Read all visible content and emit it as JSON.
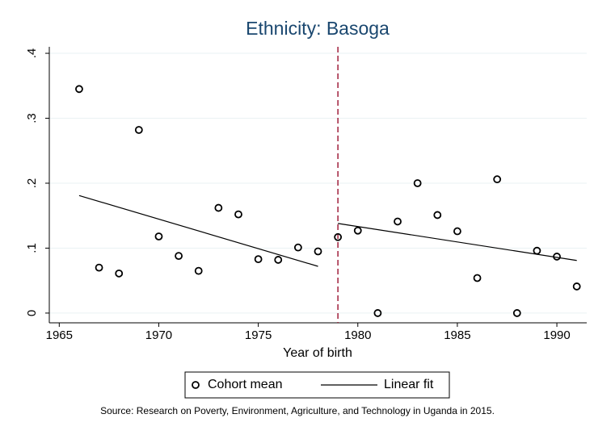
{
  "chart_data": {
    "type": "scatter",
    "title": "Ethnicity: Basoga",
    "xlabel": "Year of birth",
    "source": "Source: Research on Poverty, Environment, Agriculture, and Technology in Uganda in 2015.",
    "series": [
      {
        "name": "Cohort mean",
        "type": "scatter",
        "color": "#000000",
        "x": [
          1966,
          1967,
          1968,
          1969,
          1970,
          1971,
          1972,
          1973,
          1974,
          1975,
          1976,
          1977,
          1978,
          1979,
          1980,
          1981,
          1982,
          1983,
          1984,
          1985,
          1986,
          1987,
          1988,
          1989,
          1990,
          1991
        ],
        "values": [
          0.345,
          0.07,
          0.061,
          0.282,
          0.118,
          0.088,
          0.065,
          0.162,
          0.152,
          0.083,
          0.082,
          0.101,
          0.095,
          0.117,
          0.127,
          0,
          0.141,
          0.2,
          0.151,
          0.126,
          0.054,
          0.206,
          0,
          0.096,
          0.087,
          0.041
        ]
      },
      {
        "name": "Linear fit",
        "type": "line",
        "color": "#000000",
        "x": [
          1966,
          1978,
          null,
          1979,
          1991
        ],
        "values": [
          0.181,
          0.072,
          null,
          0.138,
          0.081
        ]
      }
    ],
    "reference_line": {
      "x": 1979,
      "color": "#a0203c",
      "style": "dashed"
    },
    "xlim": [
      1964.5,
      1991.5
    ],
    "xticks": [
      1965,
      1970,
      1975,
      1980,
      1985,
      1990
    ],
    "ylim": [
      -0.015,
      0.41
    ],
    "yticks": [
      {
        "value": 0,
        "label": "0"
      },
      {
        "value": 0.1,
        "label": ".1"
      },
      {
        "value": 0.2,
        "label": ".2"
      },
      {
        "value": 0.3,
        "label": ".3"
      },
      {
        "value": 0.4,
        "label": ".4"
      }
    ],
    "grid": true,
    "legend": "bottom"
  }
}
